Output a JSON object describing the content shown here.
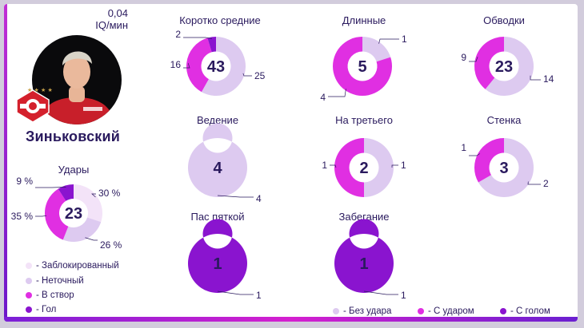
{
  "player": {
    "name": "Зиньковский",
    "iq_value": "0,04",
    "iq_unit": "IQ/мин"
  },
  "colors": {
    "no_shot": "#ddcaf0",
    "with_shot": "#e02fe2",
    "with_goal": "#8a14cf",
    "blocked": "#f3e3f8",
    "inaccurate": "#ddcaf0",
    "on_target": "#e02fe2",
    "goal": "#8a14cf",
    "text": "#2a1a5e"
  },
  "shots_legend": [
    {
      "label": "- Заблокированный",
      "color": "#f3e3f8"
    },
    {
      "label": "- Неточный",
      "color": "#ddcaf0"
    },
    {
      "label": "- В створ",
      "color": "#e02fe2"
    },
    {
      "label": "- Гол",
      "color": "#8a14cf"
    }
  ],
  "pass_legend": [
    {
      "label": "- Без удара",
      "color": "#ddcaf0"
    },
    {
      "label": "- С ударом",
      "color": "#e02fe2"
    },
    {
      "label": "- С голом",
      "color": "#8a14cf"
    }
  ],
  "chart_data": [
    {
      "id": "shots",
      "type": "pie",
      "title": "Удары",
      "total": "23",
      "slices": [
        {
          "name": "Заблокированный",
          "value": 30,
          "label": "30 %",
          "color": "#f3e3f8"
        },
        {
          "name": "Неточный",
          "value": 26,
          "label": "26 %",
          "color": "#ddcaf0"
        },
        {
          "name": "В створ",
          "value": 35,
          "label": "35 %",
          "color": "#e02fe2"
        },
        {
          "name": "Гол",
          "value": 9,
          "label": "9 %",
          "color": "#8a14cf"
        }
      ]
    },
    {
      "id": "short-medium",
      "type": "pie",
      "title": "Коротко средние",
      "total": "43",
      "slices": [
        {
          "name": "Без удара",
          "value": 25,
          "label": "25",
          "color": "#ddcaf0"
        },
        {
          "name": "С ударом",
          "value": 16,
          "label": "16",
          "color": "#e02fe2"
        },
        {
          "name": "С голом",
          "value": 2,
          "label": "2",
          "color": "#8a14cf"
        }
      ]
    },
    {
      "id": "long",
      "type": "pie",
      "title": "Длинные",
      "total": "5",
      "slices": [
        {
          "name": "Без удара",
          "value": 1,
          "label": "1",
          "color": "#ddcaf0"
        },
        {
          "name": "С ударом",
          "value": 4,
          "label": "4",
          "color": "#e02fe2"
        }
      ]
    },
    {
      "id": "dribbles",
      "type": "pie",
      "title": "Обводки",
      "total": "23",
      "slices": [
        {
          "name": "Без удара",
          "value": 14,
          "label": "14",
          "color": "#ddcaf0"
        },
        {
          "name": "С ударом",
          "value": 9,
          "label": "9",
          "color": "#e02fe2"
        }
      ]
    },
    {
      "id": "carry",
      "type": "pie",
      "title": "Ведение",
      "total": "4",
      "slices": [
        {
          "name": "Без удара",
          "value": 4,
          "label": "4",
          "color": "#ddcaf0"
        }
      ]
    },
    {
      "id": "third-man",
      "type": "pie",
      "title": "На третьего",
      "total": "2",
      "slices": [
        {
          "name": "Без удара",
          "value": 1,
          "label": "1",
          "color": "#ddcaf0"
        },
        {
          "name": "С ударом",
          "value": 1,
          "label": "1",
          "color": "#e02fe2"
        }
      ]
    },
    {
      "id": "wall",
      "type": "pie",
      "title": "Стенка",
      "total": "3",
      "slices": [
        {
          "name": "Без удара",
          "value": 2,
          "label": "2",
          "color": "#ddcaf0"
        },
        {
          "name": "С ударом",
          "value": 1,
          "label": "1",
          "color": "#e02fe2"
        }
      ]
    },
    {
      "id": "heel-pass",
      "type": "pie",
      "title": "Пас пяткой",
      "total": "1",
      "slices": [
        {
          "name": "С голом",
          "value": 1,
          "label": "1",
          "color": "#8a14cf"
        }
      ]
    },
    {
      "id": "overlap",
      "type": "pie",
      "title": "Забегание",
      "total": "1",
      "slices": [
        {
          "name": "С голом",
          "value": 1,
          "label": "1",
          "color": "#8a14cf"
        }
      ]
    }
  ]
}
